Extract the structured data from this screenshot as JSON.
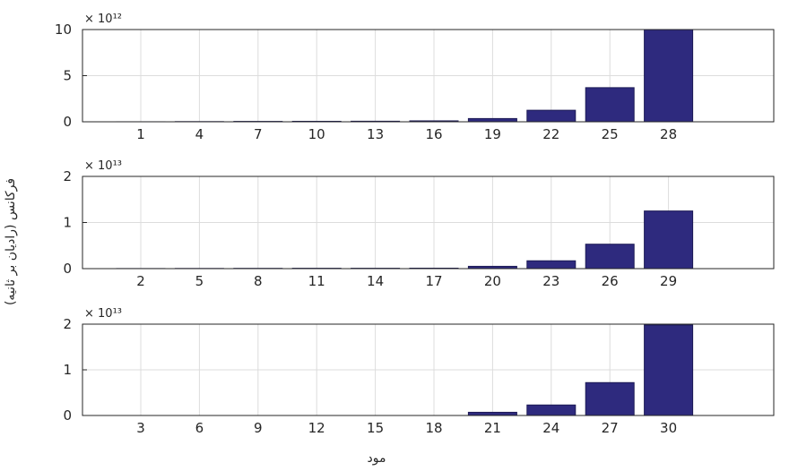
{
  "xlabel": "مود",
  "ylabel": "فرکانس (رادیان بر ثانیه)",
  "colors": {
    "bar": "#2e2a7e",
    "bar_edge": "#1c1a55",
    "grid": "#dcdcdc",
    "axis": "#262626"
  },
  "chart_data": [
    {
      "type": "bar",
      "multiplier_label": "× 10¹²",
      "ylim": [
        0,
        10
      ],
      "yticks": [
        "0",
        "5",
        "10"
      ],
      "ytick_values": [
        0,
        5,
        10
      ],
      "categories": [
        "1",
        "4",
        "7",
        "10",
        "13",
        "16",
        "19",
        "22",
        "25",
        "28"
      ],
      "values": [
        0.003,
        0.02,
        0.04,
        0.05,
        0.06,
        0.1,
        0.35,
        1.25,
        3.7,
        10.0
      ],
      "grid": true
    },
    {
      "type": "bar",
      "multiplier_label": "× 10¹³",
      "ylim": [
        0,
        2
      ],
      "yticks": [
        "0",
        "1",
        "2"
      ],
      "ytick_values": [
        0,
        1,
        2
      ],
      "categories": [
        "2",
        "5",
        "8",
        "11",
        "14",
        "17",
        "20",
        "23",
        "26",
        "29"
      ],
      "values": [
        0.002,
        0.004,
        0.006,
        0.008,
        0.008,
        0.01,
        0.05,
        0.17,
        0.53,
        1.25
      ],
      "grid": true
    },
    {
      "type": "bar",
      "multiplier_label": "× 10¹³",
      "ylim": [
        0,
        2
      ],
      "yticks": [
        "0",
        "1",
        "2"
      ],
      "ytick_values": [
        0,
        1,
        2
      ],
      "categories": [
        "3",
        "6",
        "9",
        "12",
        "15",
        "18",
        "21",
        "24",
        "27",
        "30"
      ],
      "values": [
        0.0,
        0.0,
        0.0,
        0.0,
        0.0,
        0.0,
        0.07,
        0.23,
        0.72,
        1.98
      ],
      "grid": true
    }
  ]
}
